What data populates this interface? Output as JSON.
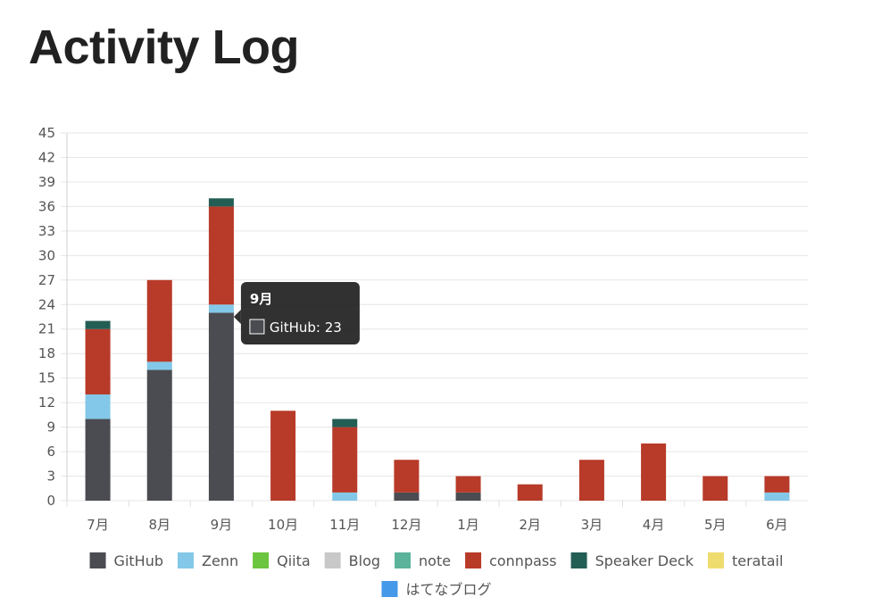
{
  "page": {
    "title": "Activity Log"
  },
  "chart_data": {
    "type": "bar",
    "stacked": true,
    "categories": [
      "7月",
      "8月",
      "9月",
      "10月",
      "11月",
      "12月",
      "1月",
      "2月",
      "3月",
      "4月",
      "5月",
      "6月"
    ],
    "series": [
      {
        "name": "GitHub",
        "color": "#4b4c52",
        "values": [
          10,
          16,
          23,
          0,
          0,
          1,
          1,
          0,
          0,
          0,
          0,
          0
        ]
      },
      {
        "name": "Zenn",
        "color": "#83c8e8",
        "values": [
          3,
          1,
          1,
          0,
          1,
          0,
          0,
          0,
          0,
          0,
          0,
          1
        ]
      },
      {
        "name": "Qiita",
        "color": "#6bc53e",
        "values": [
          0,
          0,
          0,
          0,
          0,
          0,
          0,
          0,
          0,
          0,
          0,
          0
        ]
      },
      {
        "name": "Blog",
        "color": "#c8c8c8",
        "values": [
          0,
          0,
          0,
          0,
          0,
          0,
          0,
          0,
          0,
          0,
          0,
          0
        ]
      },
      {
        "name": "note",
        "color": "#5ab39a",
        "values": [
          0,
          0,
          0,
          0,
          0,
          0,
          0,
          0,
          0,
          0,
          0,
          0
        ]
      },
      {
        "name": "connpass",
        "color": "#b83a28",
        "values": [
          8,
          10,
          12,
          11,
          8,
          4,
          2,
          2,
          5,
          7,
          3,
          2
        ]
      },
      {
        "name": "Speaker Deck",
        "color": "#235e55",
        "values": [
          1,
          0,
          1,
          0,
          1,
          0,
          0,
          0,
          0,
          0,
          0,
          0
        ]
      },
      {
        "name": "teratail",
        "color": "#efdc6f",
        "values": [
          0,
          0,
          0,
          0,
          0,
          0,
          0,
          0,
          0,
          0,
          0,
          0
        ]
      },
      {
        "name": "はてなブログ",
        "color": "#4499e8",
        "values": [
          0,
          0,
          0,
          0,
          0,
          0,
          0,
          0,
          0,
          0,
          0,
          0
        ]
      }
    ],
    "ylim": [
      0,
      45
    ],
    "yticks": [
      0,
      3,
      6,
      9,
      12,
      15,
      18,
      21,
      24,
      27,
      30,
      33,
      36,
      39,
      42,
      45
    ],
    "grid": true,
    "legend_position": "bottom",
    "tooltip": {
      "title": "9月",
      "label": "GitHub: 23",
      "category": "9月",
      "series": "GitHub"
    }
  }
}
